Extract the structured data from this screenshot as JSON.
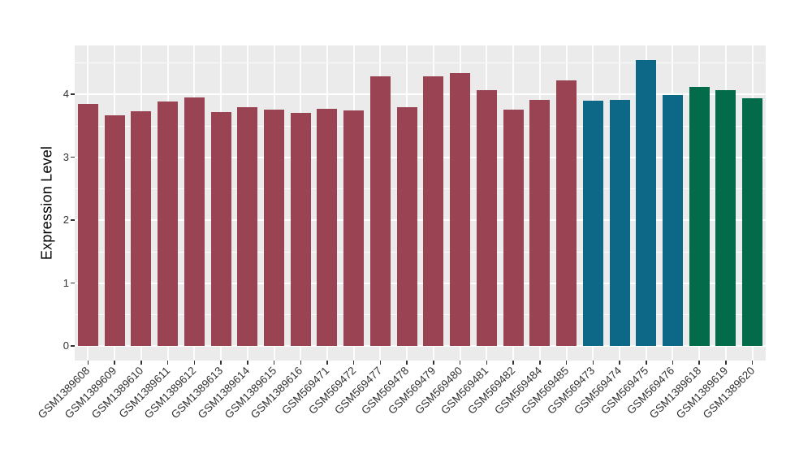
{
  "figure": {
    "background_color": "#FFFFFF",
    "panel_background_color": "#EBEBEB",
    "gridline_color": "#FFFFFF",
    "axis_text_color": "#333333",
    "legend": "none",
    "title": ""
  },
  "chart_data": {
    "type": "bar",
    "title": "",
    "xlabel": "",
    "ylabel": "Expression Level",
    "ylim": [
      0,
      4.77
    ],
    "y_ticks": [
      0,
      1,
      2,
      3,
      4
    ],
    "y_minor_gridlines": [
      0.5,
      1.5,
      2.5,
      3.5,
      4.5
    ],
    "grid": "white major and minor horizontal gridlines plus vertical gridlines at category centers on grey panel",
    "x_tick_label_angle_deg": 45,
    "categories": [
      "GSM1389608",
      "GSM1389609",
      "GSM1389610",
      "GSM1389611",
      "GSM1389612",
      "GSM1389613",
      "GSM1389614",
      "GSM1389615",
      "GSM1389616",
      "GSM569471",
      "GSM569472",
      "GSM569477",
      "GSM569478",
      "GSM569479",
      "GSM569480",
      "GSM569481",
      "GSM569482",
      "GSM569484",
      "GSM569485",
      "GSM569473",
      "GSM569474",
      "GSM569475",
      "GSM569476",
      "GSM1389618",
      "GSM1389619",
      "GSM1389620"
    ],
    "values": [
      3.84,
      3.66,
      3.73,
      3.89,
      3.95,
      3.72,
      3.79,
      3.75,
      3.7,
      3.77,
      3.74,
      4.28,
      3.79,
      4.28,
      4.33,
      4.06,
      3.75,
      3.91,
      4.22,
      3.9,
      3.91,
      4.54,
      3.99,
      4.12,
      4.06,
      3.93
    ],
    "bar_colors": [
      "#9A4453",
      "#9A4453",
      "#9A4453",
      "#9A4453",
      "#9A4453",
      "#9A4453",
      "#9A4453",
      "#9A4453",
      "#9A4453",
      "#9A4453",
      "#9A4453",
      "#9A4453",
      "#9A4453",
      "#9A4453",
      "#9A4453",
      "#9A4453",
      "#9A4453",
      "#9A4453",
      "#9A4453",
      "#0D6787",
      "#0D6787",
      "#0D6787",
      "#0D6787",
      "#046B4A",
      "#046B4A",
      "#046B4A"
    ],
    "color_groups": {
      "maroon": "#9A4453",
      "teal": "#0D6787",
      "green": "#046B4A"
    }
  }
}
